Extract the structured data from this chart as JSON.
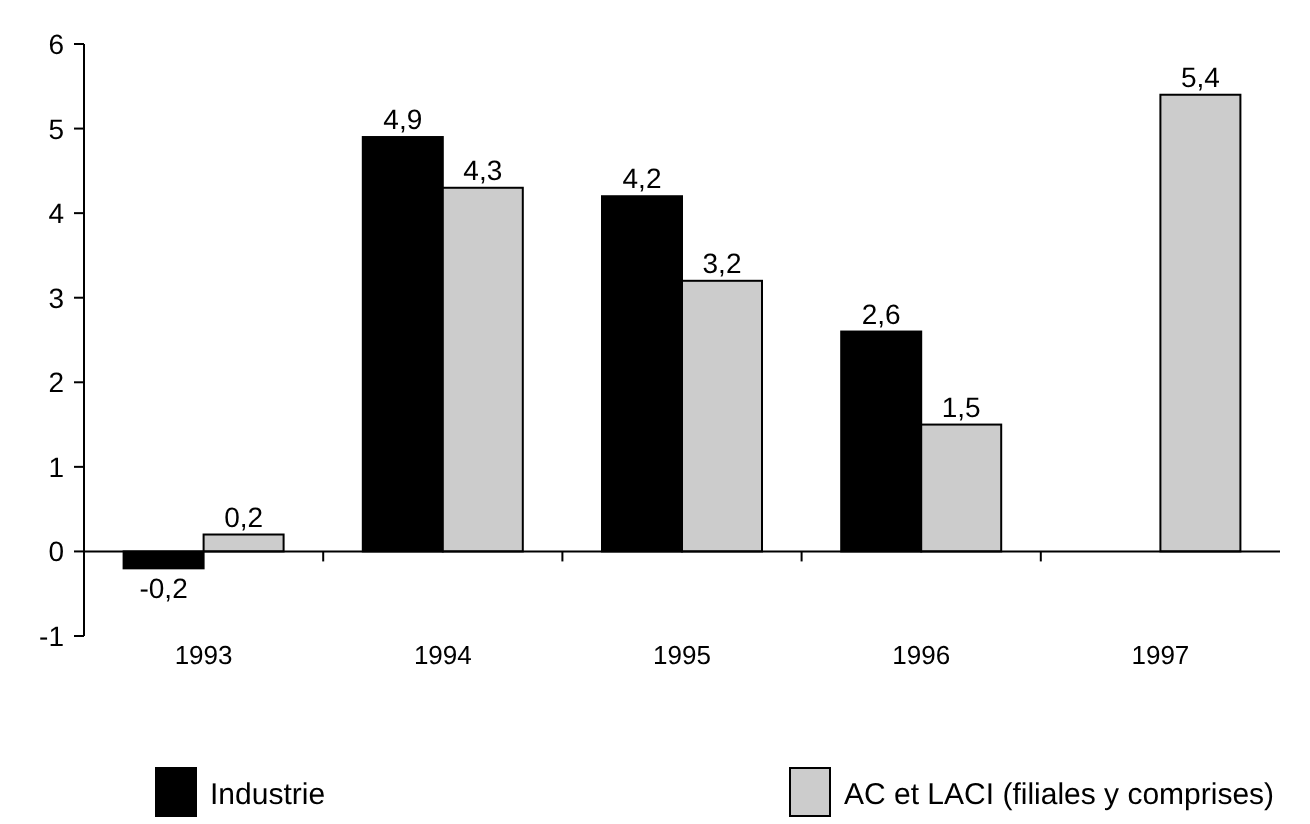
{
  "chart_data": {
    "type": "bar",
    "categories": [
      "1993",
      "1994",
      "1995",
      "1996",
      "1997"
    ],
    "series": [
      {
        "name": "Industrie",
        "color": "#000000",
        "values": [
          -0.2,
          4.9,
          4.2,
          2.6,
          null
        ],
        "value_labels": [
          "-0,2",
          "4,9",
          "4,2",
          "2,6",
          null
        ]
      },
      {
        "name": "AC et LACI (filiales y comprises)",
        "color": "#cccccc",
        "values": [
          0.2,
          4.3,
          3.2,
          1.5,
          5.4
        ],
        "value_labels": [
          "0,2",
          "4,3",
          "3,2",
          "1,5",
          "5,4"
        ]
      }
    ],
    "ylim": [
      -1,
      6
    ],
    "yticks": [
      -1,
      0,
      1,
      2,
      3,
      4,
      5,
      6
    ],
    "legend": "bottom"
  }
}
